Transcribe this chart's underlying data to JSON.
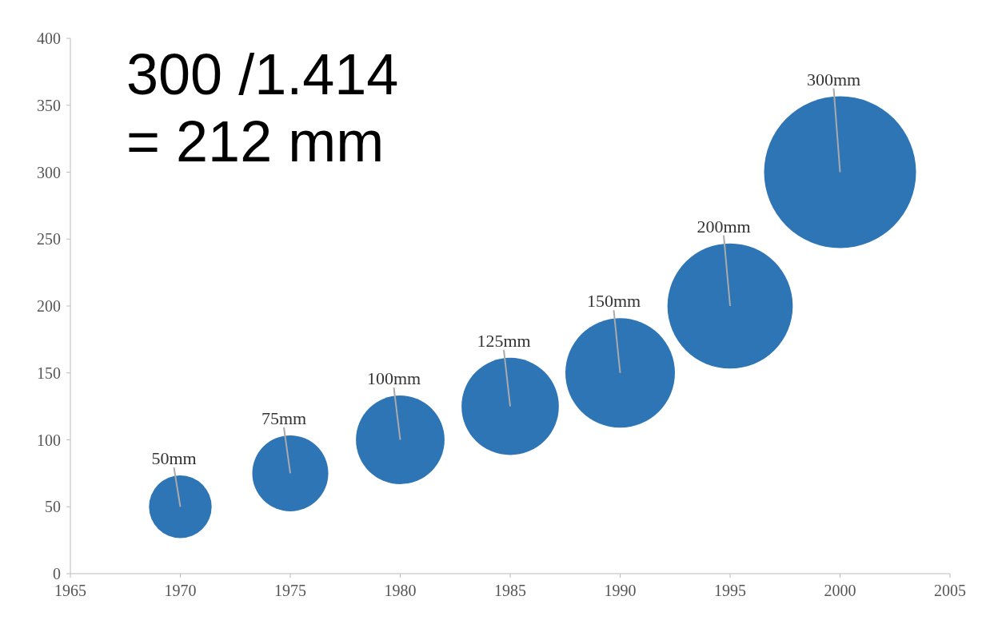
{
  "chart_data": {
    "type": "bubble",
    "x": [
      1970,
      1975,
      1980,
      1985,
      1990,
      1995,
      2000
    ],
    "values": [
      50,
      75,
      100,
      125,
      150,
      200,
      300
    ],
    "sizes": [
      0.17,
      0.25,
      0.34,
      0.41,
      0.52,
      0.68,
      1
    ],
    "color": "#2e75b6",
    "xlim": [
      1965,
      2005
    ],
    "xticks": [
      1965,
      1970,
      1975,
      1980,
      1985,
      1990,
      1995,
      2000,
      2005
    ],
    "ylim": [
      0,
      400
    ],
    "yticks": [
      0,
      50,
      100,
      150,
      200,
      250,
      300,
      350,
      400
    ],
    "grid": false,
    "annotations": [
      {
        "text": "50mm",
        "x": 1970,
        "y": 50
      },
      {
        "text": "75mm",
        "x": 1975,
        "y": 75
      },
      {
        "text": "100mm",
        "x": 1980,
        "y": 100
      },
      {
        "text": "125mm",
        "x": 1985,
        "y": 125
      },
      {
        "text": "150mm",
        "x": 1990,
        "y": 150
      },
      {
        "text": "200mm",
        "x": 1995,
        "y": 200
      },
      {
        "text": "300mm",
        "x": 2000,
        "y": 300
      },
      "300 /1.414\n= 212 mm"
    ]
  }
}
